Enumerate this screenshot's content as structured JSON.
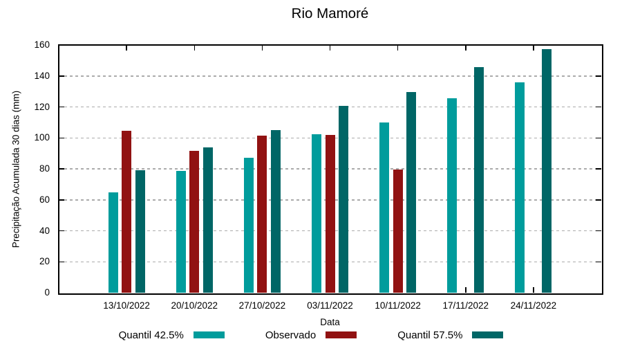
{
  "chart_data": {
    "type": "bar",
    "title": "Rio Mamoré",
    "xlabel": "Data",
    "ylabel": "Precipitação Acumulada 30 dias (mm)",
    "categories": [
      "13/10/2022",
      "20/10/2022",
      "27/10/2022",
      "03/11/2022",
      "10/11/2022",
      "17/11/2022",
      "24/11/2022"
    ],
    "series": [
      {
        "name": "Quantil 42.5%",
        "color": "#009C9C",
        "values": [
          65,
          78.5,
          87,
          102.5,
          110,
          125.5,
          136
        ]
      },
      {
        "name": "Observado",
        "color": "#911212",
        "values": [
          104.5,
          91.5,
          101.5,
          102,
          79.5,
          null,
          null
        ]
      },
      {
        "name": "Quantil 57.5%",
        "color": "#006666",
        "values": [
          79,
          94,
          105,
          120.5,
          129.5,
          145.5,
          157.5
        ]
      }
    ],
    "ylim": [
      0,
      160
    ],
    "ytick_step": 20,
    "yticks": [
      0,
      20,
      40,
      60,
      80,
      100,
      120,
      140,
      160
    ],
    "grid": "horizontal-dotted",
    "legend_position": "bottom-center",
    "colors": {
      "axis": "#000000",
      "grid": "#ababab",
      "background": "#ffffff"
    }
  }
}
